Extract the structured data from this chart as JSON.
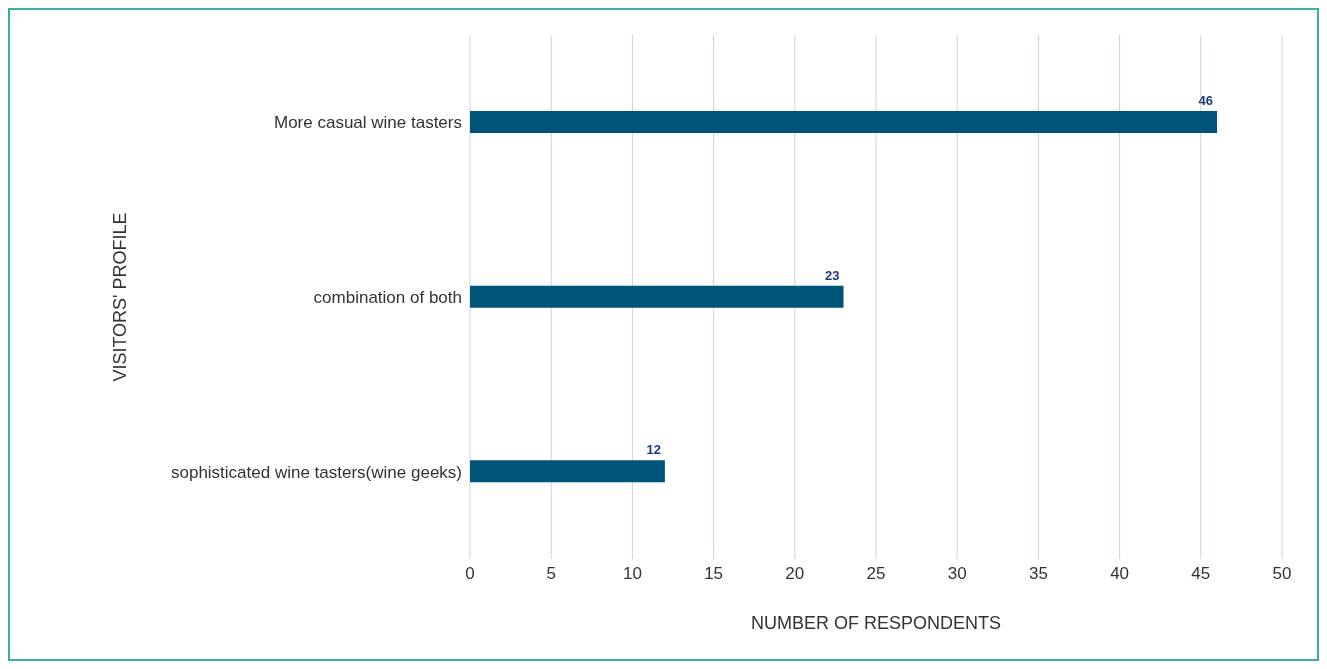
{
  "chart_data": {
    "type": "bar",
    "orientation": "horizontal",
    "xlabel": "NUMBER OF RESPONDENTS",
    "ylabel": "VISITORS' PROFILE",
    "categories": [
      "More casual wine tasters",
      "combination of both",
      "sophisticated wine tasters(wine geeks)"
    ],
    "values": [
      46,
      23,
      12
    ],
    "color": "#00547a",
    "xlim": [
      0,
      50
    ],
    "xticks": [
      0,
      5,
      10,
      15,
      20,
      25,
      30,
      35,
      40,
      45,
      50
    ],
    "grid": "x",
    "data_labels": true
  }
}
